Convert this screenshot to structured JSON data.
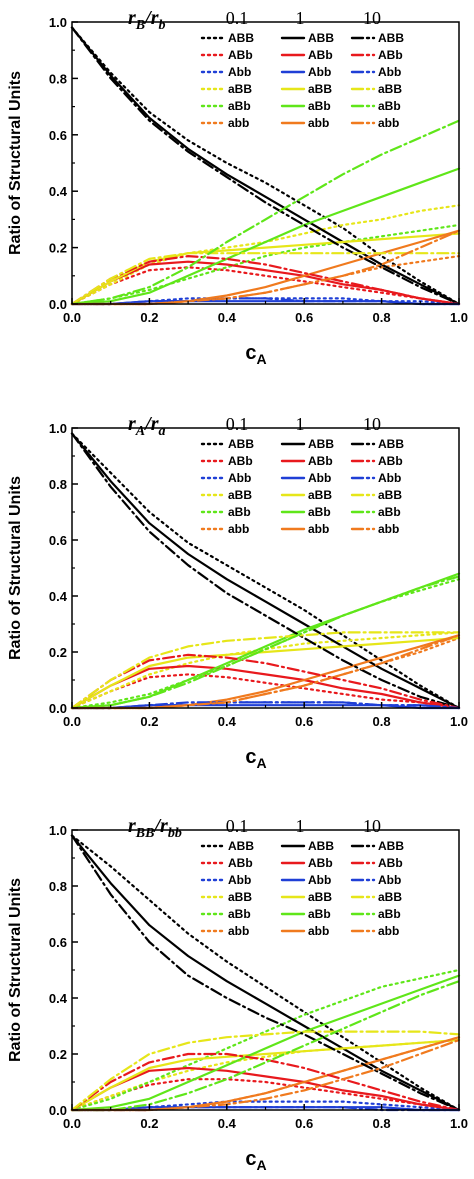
{
  "chart_data": [
    {
      "type": "line",
      "title": "",
      "xlabel_main": "c",
      "xlabel_sub": "A",
      "ylabel": "Ratio of Structural Units",
      "xlim": [
        0,
        1
      ],
      "ylim": [
        0,
        1
      ],
      "xticks": [
        "0.0",
        "0.2",
        "0.4",
        "0.6",
        "0.8",
        "1.0"
      ],
      "yticks": [
        "0.0",
        "0.2",
        "0.4",
        "0.6",
        "0.8",
        "1.0"
      ],
      "grid": false,
      "legend_placement": "top-right",
      "ratio_label": {
        "num": "r",
        "num_sub": "B",
        "den": "r",
        "den_sub": "b"
      },
      "ratio_values": [
        "0.1",
        "1",
        "10"
      ],
      "units": [
        "ABB",
        "ABb",
        "Abb",
        "aBB",
        "aBb",
        "abb"
      ],
      "colors": {
        "ABB": "#000000",
        "ABb": "#e8191d",
        "Abb": "#1f3fd6",
        "aBB": "#e6e619",
        "aBb": "#5fe619",
        "abb": "#f07a1e"
      },
      "x": [
        0,
        0.1,
        0.2,
        0.3,
        0.4,
        0.5,
        0.6,
        0.7,
        0.8,
        0.9,
        1.0
      ],
      "series": [
        {
          "name": "ABB",
          "ratio": "0.1",
          "values": [
            0.98,
            0.82,
            0.68,
            0.58,
            0.5,
            0.43,
            0.35,
            0.27,
            0.17,
            0.08,
            0.0
          ]
        },
        {
          "name": "ABb",
          "ratio": "0.1",
          "values": [
            0.0,
            0.07,
            0.12,
            0.13,
            0.12,
            0.1,
            0.08,
            0.06,
            0.04,
            0.02,
            0.0
          ]
        },
        {
          "name": "Abb",
          "ratio": "0.1",
          "values": [
            0.0,
            0.0,
            0.01,
            0.02,
            0.02,
            0.02,
            0.02,
            0.02,
            0.01,
            0.01,
            0.0
          ]
        },
        {
          "name": "aBB",
          "ratio": "0.1",
          "values": [
            0.0,
            0.07,
            0.14,
            0.18,
            0.2,
            0.22,
            0.25,
            0.28,
            0.3,
            0.33,
            0.35
          ]
        },
        {
          "name": "aBb",
          "ratio": "0.1",
          "values": [
            0.0,
            0.02,
            0.05,
            0.09,
            0.13,
            0.17,
            0.2,
            0.22,
            0.24,
            0.26,
            0.28
          ]
        },
        {
          "name": "abb",
          "ratio": "0.1",
          "values": [
            0.0,
            0.0,
            0.0,
            0.01,
            0.02,
            0.04,
            0.07,
            0.1,
            0.13,
            0.15,
            0.17
          ]
        },
        {
          "name": "ABB",
          "ratio": "1",
          "values": [
            0.98,
            0.81,
            0.66,
            0.55,
            0.46,
            0.38,
            0.3,
            0.22,
            0.14,
            0.07,
            0.0
          ]
        },
        {
          "name": "ABb",
          "ratio": "1",
          "values": [
            0.0,
            0.08,
            0.14,
            0.15,
            0.14,
            0.12,
            0.1,
            0.07,
            0.05,
            0.02,
            0.0
          ]
        },
        {
          "name": "Abb",
          "ratio": "1",
          "values": [
            0.0,
            0.0,
            0.01,
            0.01,
            0.01,
            0.01,
            0.01,
            0.01,
            0.01,
            0.0,
            0.0
          ]
        },
        {
          "name": "aBB",
          "ratio": "1",
          "values": [
            0.0,
            0.08,
            0.15,
            0.18,
            0.19,
            0.2,
            0.21,
            0.22,
            0.23,
            0.24,
            0.25
          ]
        },
        {
          "name": "aBb",
          "ratio": "1",
          "values": [
            0.0,
            0.01,
            0.04,
            0.1,
            0.16,
            0.22,
            0.28,
            0.33,
            0.38,
            0.43,
            0.48
          ]
        },
        {
          "name": "abb",
          "ratio": "1",
          "values": [
            0.0,
            0.0,
            0.0,
            0.01,
            0.03,
            0.06,
            0.1,
            0.14,
            0.18,
            0.22,
            0.26
          ]
        },
        {
          "name": "ABB",
          "ratio": "10",
          "values": [
            0.98,
            0.8,
            0.65,
            0.54,
            0.45,
            0.36,
            0.28,
            0.2,
            0.13,
            0.06,
            0.0
          ]
        },
        {
          "name": "ABb",
          "ratio": "10",
          "values": [
            0.0,
            0.09,
            0.15,
            0.17,
            0.16,
            0.14,
            0.11,
            0.08,
            0.05,
            0.02,
            0.0
          ]
        },
        {
          "name": "Abb",
          "ratio": "10",
          "values": [
            0.0,
            0.0,
            0.01,
            0.01,
            0.02,
            0.02,
            0.01,
            0.01,
            0.01,
            0.0,
            0.0
          ]
        },
        {
          "name": "aBB",
          "ratio": "10",
          "values": [
            0.0,
            0.09,
            0.16,
            0.18,
            0.18,
            0.18,
            0.18,
            0.18,
            0.18,
            0.18,
            0.18
          ]
        },
        {
          "name": "aBb",
          "ratio": "10",
          "values": [
            0.0,
            0.02,
            0.06,
            0.13,
            0.22,
            0.3,
            0.38,
            0.46,
            0.53,
            0.59,
            0.65
          ]
        },
        {
          "name": "abb",
          "ratio": "10",
          "values": [
            0.0,
            0.0,
            0.0,
            0.01,
            0.02,
            0.04,
            0.07,
            0.1,
            0.14,
            0.2,
            0.26
          ]
        }
      ]
    },
    {
      "type": "line",
      "title": "",
      "xlabel_main": "c",
      "xlabel_sub": "A",
      "ylabel": "Ratio of Structural Units",
      "xlim": [
        0,
        1
      ],
      "ylim": [
        0,
        1
      ],
      "xticks": [
        "0.0",
        "0.2",
        "0.4",
        "0.6",
        "0.8",
        "1.0"
      ],
      "yticks": [
        "0.0",
        "0.2",
        "0.4",
        "0.6",
        "0.8",
        "1.0"
      ],
      "grid": false,
      "legend_placement": "top-right",
      "ratio_label": {
        "num": "r",
        "num_sub": "A",
        "den": "r",
        "den_sub": "a"
      },
      "ratio_values": [
        "0.1",
        "1",
        "10"
      ],
      "units": [
        "ABB",
        "ABb",
        "Abb",
        "aBB",
        "aBb",
        "abb"
      ],
      "colors": {
        "ABB": "#000000",
        "ABb": "#e8191d",
        "Abb": "#1f3fd6",
        "aBB": "#e6e619",
        "aBb": "#5fe619",
        "abb": "#f07a1e"
      },
      "x": [
        0,
        0.1,
        0.2,
        0.3,
        0.4,
        0.5,
        0.6,
        0.7,
        0.8,
        0.9,
        1.0
      ],
      "series": [
        {
          "name": "ABB",
          "ratio": "0.1",
          "values": [
            0.98,
            0.84,
            0.7,
            0.59,
            0.51,
            0.43,
            0.35,
            0.26,
            0.17,
            0.08,
            0.0
          ]
        },
        {
          "name": "ABb",
          "ratio": "0.1",
          "values": [
            0.0,
            0.06,
            0.11,
            0.12,
            0.11,
            0.09,
            0.07,
            0.05,
            0.03,
            0.02,
            0.0
          ]
        },
        {
          "name": "Abb",
          "ratio": "0.1",
          "values": [
            0.0,
            0.0,
            0.01,
            0.01,
            0.02,
            0.02,
            0.02,
            0.02,
            0.01,
            0.01,
            0.0
          ]
        },
        {
          "name": "aBB",
          "ratio": "0.1",
          "values": [
            0.0,
            0.06,
            0.12,
            0.16,
            0.19,
            0.21,
            0.23,
            0.24,
            0.25,
            0.26,
            0.27
          ]
        },
        {
          "name": "aBb",
          "ratio": "0.1",
          "values": [
            0.0,
            0.02,
            0.05,
            0.1,
            0.15,
            0.21,
            0.27,
            0.33,
            0.38,
            0.42,
            0.46
          ]
        },
        {
          "name": "abb",
          "ratio": "0.1",
          "values": [
            0.0,
            0.0,
            0.0,
            0.01,
            0.02,
            0.05,
            0.08,
            0.12,
            0.16,
            0.2,
            0.25
          ]
        },
        {
          "name": "ABB",
          "ratio": "1",
          "values": [
            0.98,
            0.81,
            0.66,
            0.55,
            0.46,
            0.38,
            0.3,
            0.22,
            0.14,
            0.07,
            0.0
          ]
        },
        {
          "name": "ABb",
          "ratio": "1",
          "values": [
            0.0,
            0.08,
            0.14,
            0.15,
            0.14,
            0.12,
            0.1,
            0.07,
            0.05,
            0.02,
            0.0
          ]
        },
        {
          "name": "Abb",
          "ratio": "1",
          "values": [
            0.0,
            0.0,
            0.01,
            0.01,
            0.01,
            0.01,
            0.01,
            0.01,
            0.01,
            0.0,
            0.0
          ]
        },
        {
          "name": "aBB",
          "ratio": "1",
          "values": [
            0.0,
            0.08,
            0.15,
            0.18,
            0.19,
            0.2,
            0.21,
            0.22,
            0.23,
            0.24,
            0.25
          ]
        },
        {
          "name": "aBb",
          "ratio": "1",
          "values": [
            0.0,
            0.01,
            0.04,
            0.1,
            0.16,
            0.22,
            0.28,
            0.33,
            0.38,
            0.43,
            0.48
          ]
        },
        {
          "name": "abb",
          "ratio": "1",
          "values": [
            0.0,
            0.0,
            0.0,
            0.01,
            0.03,
            0.06,
            0.1,
            0.14,
            0.18,
            0.22,
            0.26
          ]
        },
        {
          "name": "ABB",
          "ratio": "10",
          "values": [
            0.98,
            0.79,
            0.63,
            0.51,
            0.41,
            0.33,
            0.25,
            0.17,
            0.1,
            0.04,
            0.0
          ]
        },
        {
          "name": "ABb",
          "ratio": "10",
          "values": [
            0.0,
            0.1,
            0.17,
            0.19,
            0.18,
            0.16,
            0.13,
            0.1,
            0.07,
            0.03,
            0.0
          ]
        },
        {
          "name": "Abb",
          "ratio": "10",
          "values": [
            0.0,
            0.0,
            0.01,
            0.02,
            0.02,
            0.02,
            0.02,
            0.02,
            0.01,
            0.01,
            0.0
          ]
        },
        {
          "name": "aBB",
          "ratio": "10",
          "values": [
            0.0,
            0.1,
            0.18,
            0.22,
            0.24,
            0.25,
            0.26,
            0.27,
            0.27,
            0.27,
            0.27
          ]
        },
        {
          "name": "aBb",
          "ratio": "10",
          "values": [
            0.0,
            0.01,
            0.04,
            0.09,
            0.15,
            0.21,
            0.27,
            0.33,
            0.38,
            0.43,
            0.47
          ]
        },
        {
          "name": "abb",
          "ratio": "10",
          "values": [
            0.0,
            0.0,
            0.0,
            0.01,
            0.02,
            0.05,
            0.08,
            0.12,
            0.16,
            0.21,
            0.26
          ]
        }
      ]
    },
    {
      "type": "line",
      "title": "",
      "xlabel_main": "c",
      "xlabel_sub": "A",
      "ylabel": "Ratio of Structural Units",
      "xlim": [
        0,
        1
      ],
      "ylim": [
        0,
        1
      ],
      "xticks": [
        "0.0",
        "0.2",
        "0.4",
        "0.6",
        "0.8",
        "1.0"
      ],
      "yticks": [
        "0.0",
        "0.2",
        "0.4",
        "0.6",
        "0.8",
        "1.0"
      ],
      "grid": false,
      "legend_placement": "top-right",
      "ratio_label": {
        "num": "r",
        "num_sub": "BB",
        "den": "r",
        "den_sub": "bb"
      },
      "ratio_values": [
        "0.1",
        "1",
        "10"
      ],
      "units": [
        "ABB",
        "ABb",
        "Abb",
        "aBB",
        "aBb",
        "abb"
      ],
      "colors": {
        "ABB": "#000000",
        "ABb": "#e8191d",
        "Abb": "#1f3fd6",
        "aBB": "#e6e619",
        "aBb": "#5fe619",
        "abb": "#f07a1e"
      },
      "x": [
        0,
        0.1,
        0.2,
        0.3,
        0.4,
        0.5,
        0.6,
        0.7,
        0.8,
        0.9,
        1.0
      ],
      "series": [
        {
          "name": "ABB",
          "ratio": "0.1",
          "values": [
            0.98,
            0.87,
            0.75,
            0.63,
            0.53,
            0.44,
            0.35,
            0.26,
            0.17,
            0.08,
            0.0
          ]
        },
        {
          "name": "ABb",
          "ratio": "0.1",
          "values": [
            0.0,
            0.05,
            0.09,
            0.11,
            0.11,
            0.1,
            0.08,
            0.06,
            0.04,
            0.02,
            0.0
          ]
        },
        {
          "name": "Abb",
          "ratio": "0.1",
          "values": [
            0.0,
            0.0,
            0.01,
            0.02,
            0.03,
            0.03,
            0.03,
            0.03,
            0.02,
            0.01,
            0.0
          ]
        },
        {
          "name": "aBB",
          "ratio": "0.1",
          "values": [
            0.0,
            0.05,
            0.1,
            0.14,
            0.17,
            0.19,
            0.21,
            0.22,
            0.23,
            0.24,
            0.25
          ]
        },
        {
          "name": "aBb",
          "ratio": "0.1",
          "values": [
            0.0,
            0.04,
            0.1,
            0.16,
            0.22,
            0.28,
            0.34,
            0.39,
            0.44,
            0.47,
            0.5
          ]
        },
        {
          "name": "abb",
          "ratio": "0.1",
          "values": [
            0.0,
            0.0,
            0.0,
            0.01,
            0.03,
            0.06,
            0.1,
            0.14,
            0.18,
            0.22,
            0.26
          ]
        },
        {
          "name": "ABB",
          "ratio": "1",
          "values": [
            0.98,
            0.81,
            0.66,
            0.55,
            0.46,
            0.38,
            0.3,
            0.22,
            0.14,
            0.07,
            0.0
          ]
        },
        {
          "name": "ABb",
          "ratio": "1",
          "values": [
            0.0,
            0.08,
            0.14,
            0.15,
            0.14,
            0.12,
            0.1,
            0.07,
            0.05,
            0.02,
            0.0
          ]
        },
        {
          "name": "Abb",
          "ratio": "1",
          "values": [
            0.0,
            0.0,
            0.01,
            0.01,
            0.01,
            0.01,
            0.01,
            0.01,
            0.01,
            0.0,
            0.0
          ]
        },
        {
          "name": "aBB",
          "ratio": "1",
          "values": [
            0.0,
            0.08,
            0.15,
            0.18,
            0.19,
            0.2,
            0.21,
            0.22,
            0.23,
            0.24,
            0.25
          ]
        },
        {
          "name": "aBb",
          "ratio": "1",
          "values": [
            0.0,
            0.01,
            0.04,
            0.1,
            0.16,
            0.22,
            0.28,
            0.33,
            0.38,
            0.43,
            0.48
          ]
        },
        {
          "name": "abb",
          "ratio": "1",
          "values": [
            0.0,
            0.0,
            0.0,
            0.01,
            0.03,
            0.06,
            0.1,
            0.14,
            0.18,
            0.22,
            0.26
          ]
        },
        {
          "name": "ABB",
          "ratio": "10",
          "values": [
            0.98,
            0.77,
            0.6,
            0.48,
            0.4,
            0.33,
            0.27,
            0.2,
            0.13,
            0.06,
            0.0
          ]
        },
        {
          "name": "ABb",
          "ratio": "10",
          "values": [
            0.0,
            0.1,
            0.17,
            0.2,
            0.2,
            0.18,
            0.15,
            0.11,
            0.07,
            0.03,
            0.0
          ]
        },
        {
          "name": "Abb",
          "ratio": "10",
          "values": [
            0.0,
            0.0,
            0.0,
            0.01,
            0.01,
            0.01,
            0.01,
            0.01,
            0.0,
            0.0,
            0.0
          ]
        },
        {
          "name": "aBB",
          "ratio": "10",
          "values": [
            0.0,
            0.11,
            0.2,
            0.24,
            0.26,
            0.27,
            0.28,
            0.28,
            0.28,
            0.28,
            0.27
          ]
        },
        {
          "name": "aBb",
          "ratio": "10",
          "values": [
            0.0,
            0.0,
            0.02,
            0.06,
            0.11,
            0.17,
            0.23,
            0.29,
            0.35,
            0.41,
            0.46
          ]
        },
        {
          "name": "abb",
          "ratio": "10",
          "values": [
            0.0,
            0.0,
            0.0,
            0.01,
            0.02,
            0.04,
            0.07,
            0.11,
            0.15,
            0.2,
            0.25
          ]
        }
      ]
    }
  ]
}
